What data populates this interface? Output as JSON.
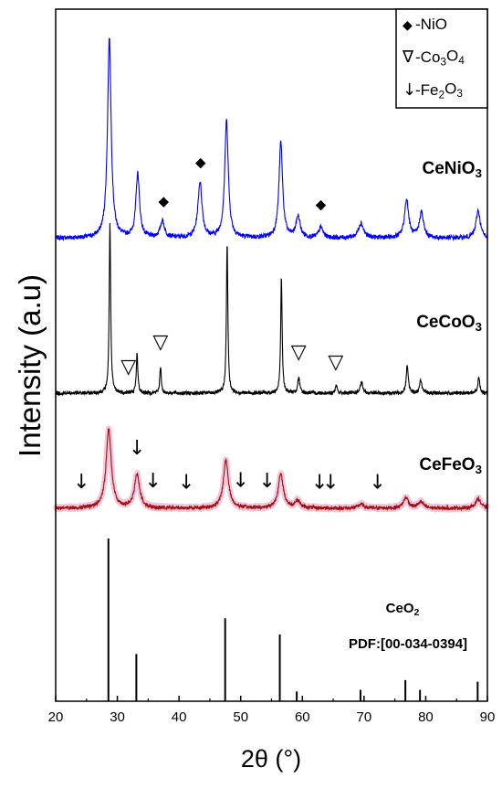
{
  "chart_data": {
    "type": "line",
    "xlabel": "2θ (°)",
    "ylabel": "Intensity (a.u)",
    "xlim": [
      20,
      90
    ],
    "x_ticks": [
      "20",
      "30",
      "40",
      "50",
      "60",
      "70",
      "80",
      "90"
    ],
    "series": [
      {
        "name": "CeNiO",
        "name_sub": "3",
        "color": "#0000ff",
        "peaks": [
          {
            "x": 28.7,
            "h": 0.94,
            "w": 0.35
          },
          {
            "x": 33.3,
            "h": 0.3,
            "w": 0.35
          },
          {
            "x": 37.3,
            "h": 0.08,
            "w": 0.4
          },
          {
            "x": 43.4,
            "h": 0.26,
            "w": 0.4
          },
          {
            "x": 47.7,
            "h": 0.55,
            "w": 0.35
          },
          {
            "x": 56.5,
            "h": 0.45,
            "w": 0.35
          },
          {
            "x": 59.3,
            "h": 0.1,
            "w": 0.4
          },
          {
            "x": 63.0,
            "h": 0.05,
            "w": 0.4
          },
          {
            "x": 69.5,
            "h": 0.07,
            "w": 0.5
          },
          {
            "x": 76.9,
            "h": 0.18,
            "w": 0.4
          },
          {
            "x": 79.3,
            "h": 0.12,
            "w": 0.4
          },
          {
            "x": 88.5,
            "h": 0.13,
            "w": 0.4
          }
        ],
        "markers": {
          "symbol": "◆",
          "x": [
            37.5,
            43.5,
            63.0
          ]
        }
      },
      {
        "name": "CeCoO",
        "name_sub": "3",
        "color": "#000000",
        "peaks": [
          {
            "x": 28.8,
            "h": 1.0,
            "w": 0.14
          },
          {
            "x": 33.2,
            "h": 0.24,
            "w": 0.14
          },
          {
            "x": 37.0,
            "h": 0.15,
            "w": 0.15
          },
          {
            "x": 47.8,
            "h": 0.88,
            "w": 0.14
          },
          {
            "x": 56.6,
            "h": 0.68,
            "w": 0.14
          },
          {
            "x": 59.4,
            "h": 0.09,
            "w": 0.2
          },
          {
            "x": 65.5,
            "h": 0.04,
            "w": 0.2
          },
          {
            "x": 69.6,
            "h": 0.06,
            "w": 0.25
          },
          {
            "x": 77.0,
            "h": 0.16,
            "w": 0.2
          },
          {
            "x": 79.2,
            "h": 0.08,
            "w": 0.2
          },
          {
            "x": 88.6,
            "h": 0.09,
            "w": 0.2
          }
        ],
        "markers": {
          "symbol": "▽",
          "x": [
            31.8,
            37.0,
            59.4,
            65.4
          ]
        }
      },
      {
        "name": "CeFeO",
        "name_sub": "3",
        "color": "#a01010",
        "shadow": "#f2c6dc",
        "peaks": [
          {
            "x": 28.6,
            "h": 0.75,
            "w": 0.5
          },
          {
            "x": 33.2,
            "h": 0.32,
            "w": 0.5
          },
          {
            "x": 47.6,
            "h": 0.45,
            "w": 0.5
          },
          {
            "x": 56.5,
            "h": 0.32,
            "w": 0.5
          },
          {
            "x": 59.2,
            "h": 0.07,
            "w": 0.5
          },
          {
            "x": 69.5,
            "h": 0.04,
            "w": 0.5
          },
          {
            "x": 76.8,
            "h": 0.1,
            "w": 0.5
          },
          {
            "x": 79.2,
            "h": 0.06,
            "w": 0.5
          },
          {
            "x": 88.5,
            "h": 0.09,
            "w": 0.5
          }
        ],
        "markers": {
          "symbol": "↓",
          "x": [
            24.2,
            33.2,
            35.8,
            41.2,
            50.0,
            54.3,
            62.8,
            64.6,
            72.2
          ]
        }
      }
    ],
    "reference": {
      "name": "CeO",
      "name_sub": "2",
      "pdf": "PDF:[00-034-0394]",
      "color": "#000000",
      "lines": [
        {
          "x": 28.55,
          "h": 1.0
        },
        {
          "x": 33.08,
          "h": 0.29
        },
        {
          "x": 47.48,
          "h": 0.51
        },
        {
          "x": 56.34,
          "h": 0.41
        },
        {
          "x": 59.09,
          "h": 0.06
        },
        {
          "x": 69.42,
          "h": 0.07
        },
        {
          "x": 76.7,
          "h": 0.13
        },
        {
          "x": 79.07,
          "h": 0.07
        },
        {
          "x": 88.42,
          "h": 0.12
        }
      ]
    },
    "legend": {
      "position": "top-right",
      "items": [
        {
          "symbol": "◆",
          "text": "-NiO",
          "sub": ""
        },
        {
          "symbol": "∇",
          "text": "-Co",
          "sub": "3",
          "text2": "O",
          "sub2": "4"
        },
        {
          "symbol": "↓",
          "text": "-Fe",
          "sub": "2",
          "text2": "O",
          "sub2": "3"
        }
      ]
    }
  }
}
